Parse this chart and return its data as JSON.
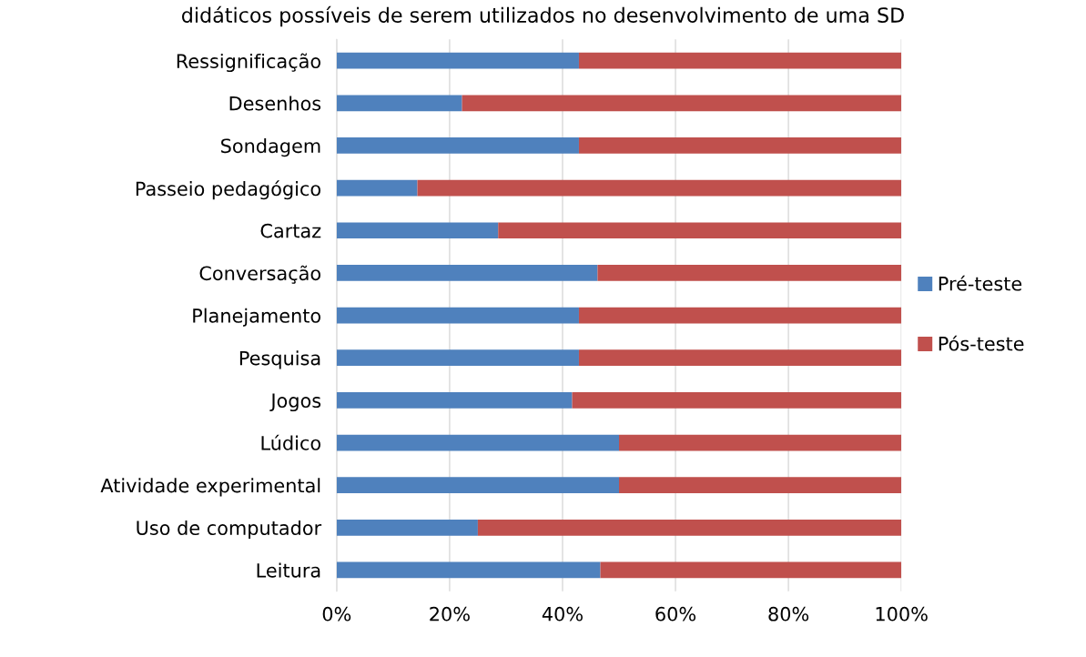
{
  "chart_data": {
    "type": "bar",
    "orientation": "horizontal",
    "stacked": true,
    "title": "didáticos possíveis de serem utilizados no desenvolvimento de uma SD",
    "categories": [
      "Ressignificação",
      "Desenhos",
      "Sondagem",
      "Passeio pedagógico",
      "Cartaz",
      "Conversação",
      "Planejamento",
      "Pesquisa",
      "Jogos",
      "Lúdico",
      "Atividade experimental",
      "Uso de computador",
      "Leitura"
    ],
    "series": [
      {
        "name": "Pré-teste",
        "color": "#4f81bd",
        "values": [
          42.9,
          22.2,
          42.9,
          14.3,
          28.6,
          46.2,
          42.9,
          42.9,
          41.7,
          50,
          50,
          25,
          46.7
        ]
      },
      {
        "name": "Pós-teste",
        "color": "#c0504d",
        "values": [
          57.1,
          77.8,
          57.1,
          85.7,
          71.4,
          53.8,
          57.1,
          57.1,
          58.3,
          50,
          50,
          75,
          53.3
        ]
      }
    ],
    "xlim": [
      0,
      100
    ],
    "xticks": [
      {
        "value": 0,
        "label": "0%"
      },
      {
        "value": 20,
        "label": "20%"
      },
      {
        "value": 40,
        "label": "40%"
      },
      {
        "value": 60,
        "label": "60%"
      },
      {
        "value": 80,
        "label": "80%"
      },
      {
        "value": 100,
        "label": "100%"
      }
    ],
    "grid": "x",
    "legend": "right"
  }
}
